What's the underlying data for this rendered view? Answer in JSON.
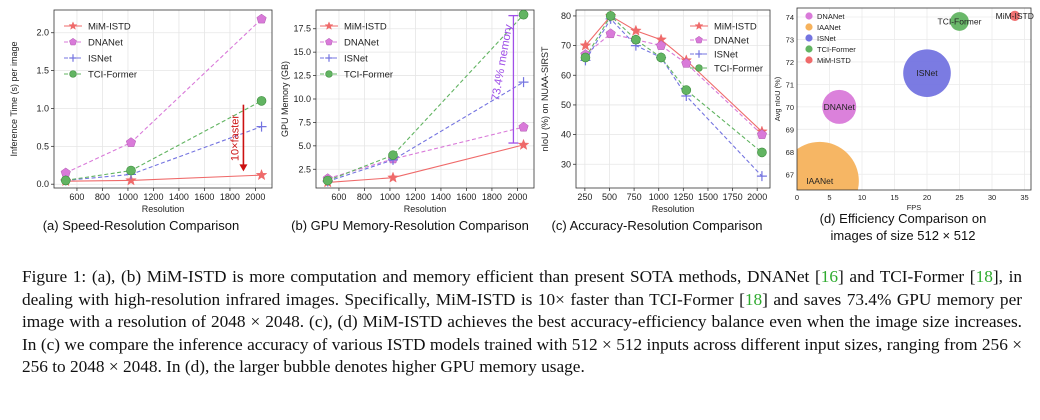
{
  "figure": {
    "caption_p1": "Figure 1: (a), (b) MiM-ISTD is more computation and memory efficient than present SOTA methods, DNANet [",
    "caption_ref1": "16",
    "caption_p2": "] and TCI-Former [",
    "caption_ref2": "18",
    "caption_p3": "], in dealing with high-resolution infrared images. Specifically, MiM-ISTD is 10× faster than TCI-Former [",
    "caption_ref3": "18",
    "caption_p4": "] and saves 73.4% GPU memory per image with a resolution of 2048 × 2048. (c), (d) MiM-ISTD achieves the best accuracy-efficiency balance even when the image size increases. In (c) we compare the inference accuracy of various ISTD models trained with 512 × 512 inputs across different input sizes, ranging from 256 × 256 to 2048 × 2048. In (d), the larger bubble denotes higher GPU memory usage."
  },
  "colors": {
    "mim": "#ef6a6a",
    "dna": "#d97ad9",
    "isnet": "#7474e0",
    "tci": "#62b462",
    "iaa": "#f6b25c",
    "arrow": "#cc1111",
    "violet": "#a050e8"
  },
  "chart_data": [
    {
      "type": "line",
      "title": "(a) Speed-Resolution Comparison",
      "xlabel": "Resolution",
      "ylabel": "Inference Time (s) per image",
      "xlim": [
        420,
        2130
      ],
      "ylim": [
        -0.05,
        2.3
      ],
      "xticks": [
        600,
        800,
        1000,
        1200,
        1400,
        1600,
        1800,
        2000
      ],
      "yticks": [
        0.0,
        0.5,
        1.0,
        1.5,
        2.0
      ],
      "x": [
        512,
        1024,
        2048
      ],
      "series": [
        {
          "name": "MiM-ISTD",
          "marker": "star",
          "values": [
            0.04,
            0.05,
            0.12
          ]
        },
        {
          "name": "DNANet",
          "marker": "pentagon",
          "values": [
            0.15,
            0.55,
            2.18
          ]
        },
        {
          "name": "ISNet",
          "marker": "plus",
          "values": [
            0.05,
            0.13,
            0.76
          ]
        },
        {
          "name": "TCI-Former",
          "marker": "circle",
          "values": [
            0.05,
            0.18,
            1.1
          ]
        }
      ],
      "annotation": {
        "text": "10×faster",
        "x": 2000,
        "y_from": 1.05,
        "y_to": 0.17
      }
    },
    {
      "type": "line",
      "title": "(b) GPU Memory-Resolution Comparison",
      "xlabel": "Resolution",
      "ylabel": "GPU Memory (GB)",
      "xlim": [
        420,
        2130
      ],
      "ylim": [
        0.5,
        19.5
      ],
      "xticks": [
        600,
        800,
        1000,
        1200,
        1400,
        1600,
        1800,
        2000
      ],
      "yticks": [
        2.5,
        5.0,
        7.5,
        10.0,
        12.5,
        15.0,
        17.5
      ],
      "x": [
        512,
        1024,
        2048
      ],
      "series": [
        {
          "name": "MiM-ISTD",
          "marker": "star",
          "values": [
            1.1,
            1.6,
            5.1
          ]
        },
        {
          "name": "DNANet",
          "marker": "pentagon",
          "values": [
            1.5,
            3.6,
            7.0
          ]
        },
        {
          "name": "ISNet",
          "marker": "plus",
          "values": [
            1.2,
            3.5,
            11.8
          ]
        },
        {
          "name": "TCI-Former",
          "marker": "circle",
          "values": [
            1.3,
            4.0,
            19.0
          ]
        }
      ],
      "annotation": {
        "text": "73.4% memory",
        "x": 2000,
        "y_from": 18.9,
        "y_to": 5.3
      }
    },
    {
      "type": "line",
      "title": "(c) Accuracy-Resolution Comparison",
      "xlabel": "Resolution",
      "ylabel": "nIoU (%) on NUAA-SIRST",
      "xlim": [
        160,
        2130
      ],
      "ylim": [
        22,
        82
      ],
      "xticks": [
        250,
        500,
        750,
        1000,
        1250,
        1500,
        1750,
        2000
      ],
      "yticks": [
        30,
        40,
        50,
        60,
        70,
        80
      ],
      "x": [
        256,
        512,
        768,
        1024,
        1280,
        2048
      ],
      "series": [
        {
          "name": "MiM-ISTD",
          "marker": "star",
          "values": [
            70,
            80,
            75,
            72,
            65,
            41
          ]
        },
        {
          "name": "DNANet",
          "marker": "pentagon",
          "values": [
            67,
            74,
            72,
            70,
            64,
            40
          ]
        },
        {
          "name": "ISNet",
          "marker": "plus",
          "values": [
            65,
            79,
            70,
            66,
            53,
            26
          ]
        },
        {
          "name": "TCI-Former",
          "marker": "circle",
          "values": [
            66,
            80,
            72,
            66,
            55,
            34
          ]
        }
      ]
    },
    {
      "type": "scatter",
      "title": "(d) Efficiency Comparison on images of size 512 × 512",
      "title_line1": "(d) Efficiency Comparison on",
      "title_line2": "images of size 512 × 512",
      "xlabel": "FPS",
      "ylabel": "Avg nIoU (%)",
      "xlim": [
        0,
        36
      ],
      "ylim": [
        66.3,
        74.4
      ],
      "xticks": [
        0,
        5,
        10,
        15,
        20,
        25,
        30,
        35
      ],
      "yticks": [
        67,
        68,
        69,
        70,
        71,
        72,
        73,
        74
      ],
      "points": [
        {
          "name": "DNANet",
          "label": "DNANet",
          "fps": 6.5,
          "niou": 70.0,
          "size": 1.0
        },
        {
          "name": "IAANet",
          "label": "IAANet",
          "fps": 3.5,
          "niou": 66.7,
          "size": 2.3
        },
        {
          "name": "ISNet",
          "label": "ISNet",
          "fps": 20.0,
          "niou": 71.5,
          "size": 1.4
        },
        {
          "name": "TCI-Former",
          "label": "TCI-Former",
          "fps": 25.0,
          "niou": 73.8,
          "size": 0.55
        },
        {
          "name": "MiM-ISTD",
          "label": "MiM-ISTD",
          "fps": 33.5,
          "niou": 74.05,
          "size": 0.3
        }
      ]
    }
  ]
}
